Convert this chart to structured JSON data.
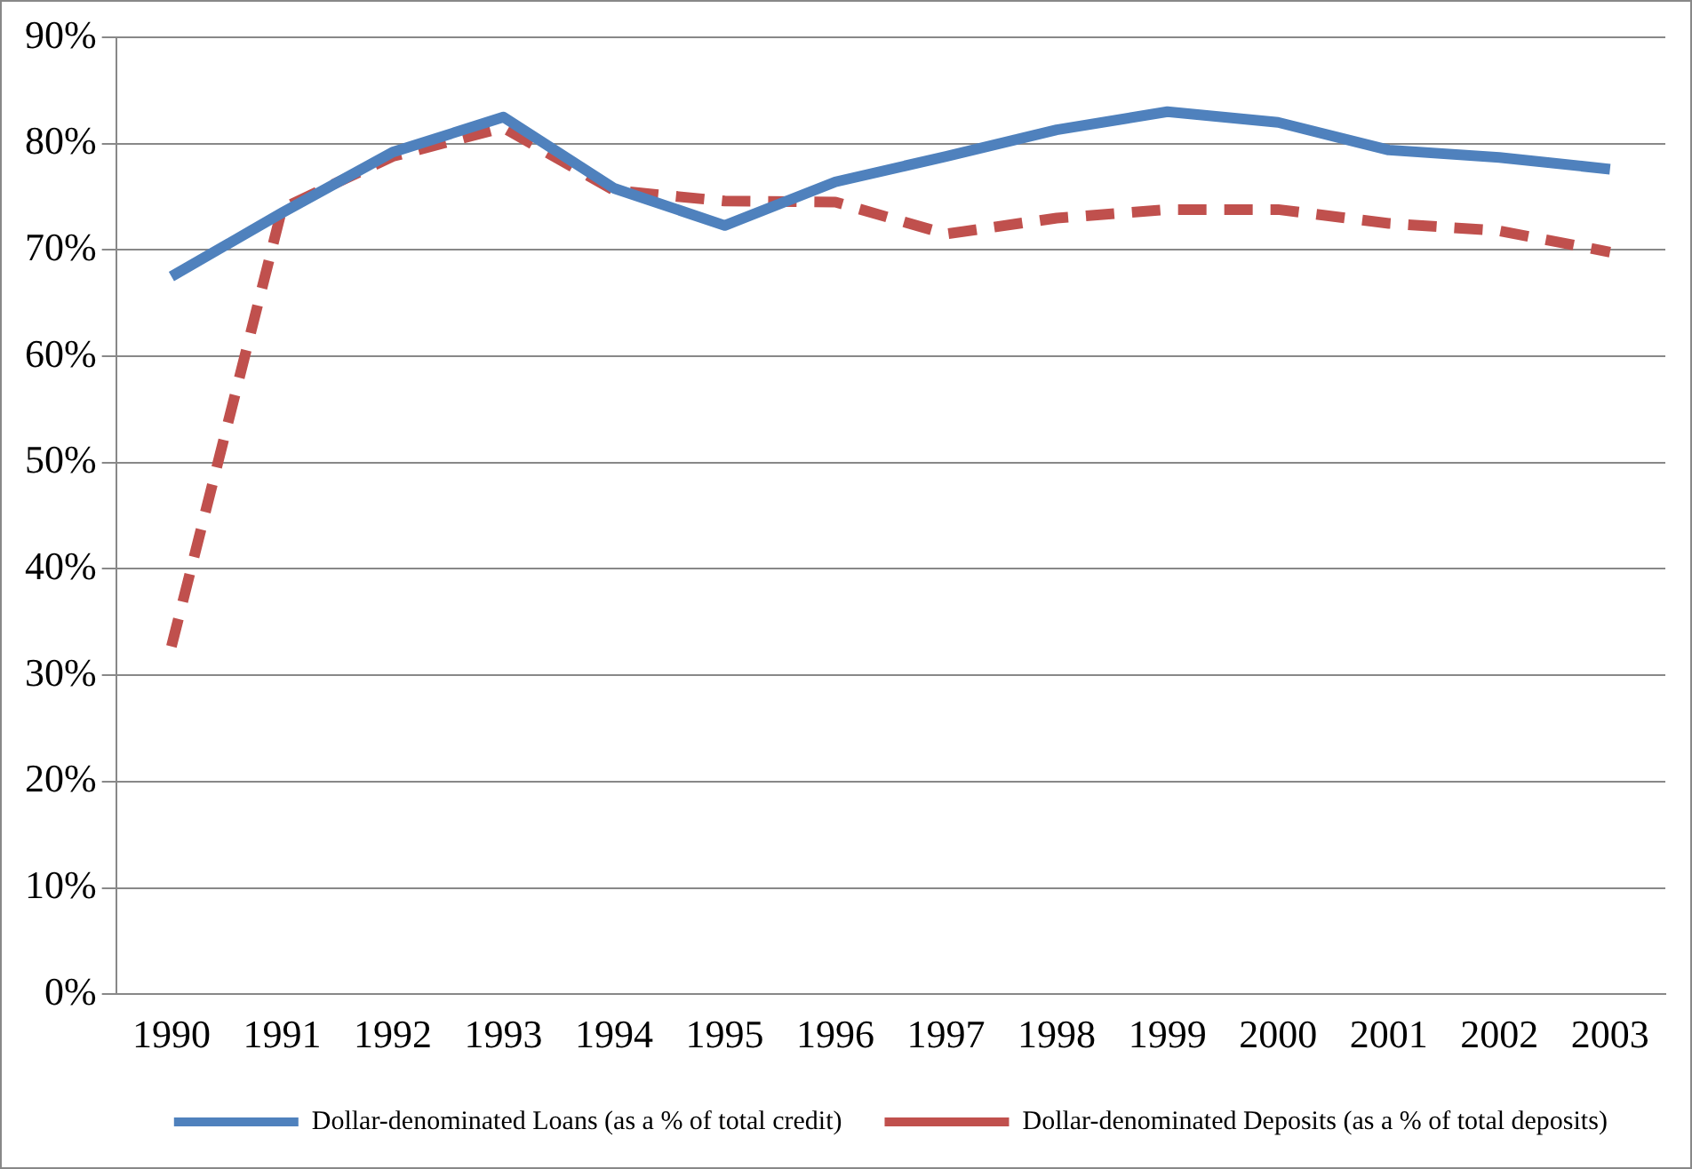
{
  "chart_data": {
    "type": "line",
    "categories": [
      "1990",
      "1991",
      "1992",
      "1993",
      "1994",
      "1995",
      "1996",
      "1997",
      "1998",
      "1999",
      "2000",
      "2001",
      "2002",
      "2003"
    ],
    "series": [
      {
        "name": "Dollar-denominated Loans (as a % of total credit)",
        "color": "#4f81bd",
        "line_style": "solid",
        "values": [
          67.5,
          73.5,
          79.2,
          82.5,
          75.8,
          72.3,
          76.4,
          78.8,
          81.3,
          83,
          82,
          79.4,
          78.7,
          77.6
        ]
      },
      {
        "name": "Dollar-denominated Deposits (as a % of total deposits)",
        "color": "#c0504d",
        "line_style": "dashed",
        "values": [
          32.7,
          73.9,
          78.8,
          81.5,
          75.6,
          74.6,
          74.5,
          71.5,
          73,
          73.8,
          73.8,
          72.5,
          71.8,
          69.8
        ]
      }
    ],
    "ylim": [
      0,
      90
    ],
    "yticks": [
      {
        "value": 0,
        "label": "0%"
      },
      {
        "value": 10,
        "label": "10%"
      },
      {
        "value": 20,
        "label": "20%"
      },
      {
        "value": 30,
        "label": "30%"
      },
      {
        "value": 40,
        "label": "40%"
      },
      {
        "value": 50,
        "label": "50%"
      },
      {
        "value": 60,
        "label": "60%"
      },
      {
        "value": 70,
        "label": "70%"
      },
      {
        "value": 80,
        "label": "80%"
      },
      {
        "value": 90,
        "label": "90%"
      }
    ],
    "grid": "y",
    "legend": "bottom",
    "marker": "none"
  }
}
